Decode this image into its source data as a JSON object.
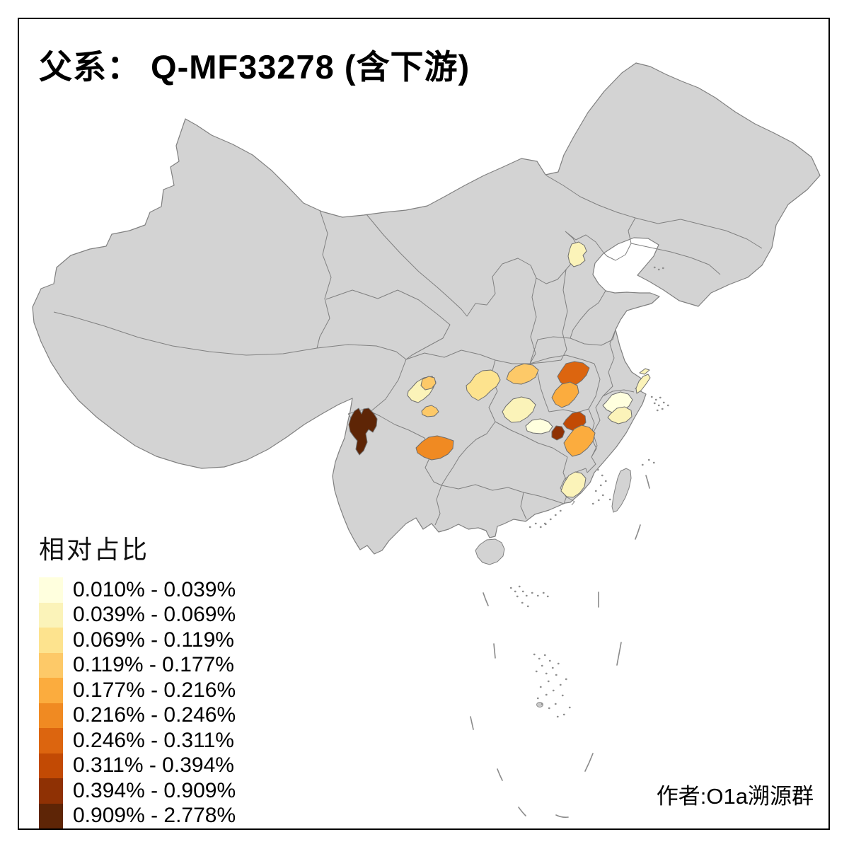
{
  "title": "父系： Q-MF33278 (含下游)",
  "author_credit": "作者:O1a溯源群",
  "chart_data": {
    "type": "choropleth",
    "map_area": "China (prefecture level)",
    "title": "父系： Q-MF33278 (含下游)",
    "legend_title": "相对占比",
    "legend_position": "bottom-left",
    "base_map": {
      "land_fill": "#D3D3D3",
      "border_stroke": "#808080",
      "sea_fill": "#FFFFFF"
    },
    "classes": [
      {
        "label": "0.010% - 0.039%",
        "color": "#FFFFDE"
      },
      {
        "label": "0.039% - 0.069%",
        "color": "#FBF3B9"
      },
      {
        "label": "0.069% - 0.119%",
        "color": "#FDE38E"
      },
      {
        "label": "0.119% - 0.177%",
        "color": "#FDC968"
      },
      {
        "label": "0.177% - 0.216%",
        "color": "#FBAC3E"
      },
      {
        "label": "0.216% - 0.246%",
        "color": "#F08A22"
      },
      {
        "label": "0.246% - 0.311%",
        "color": "#DC650F"
      },
      {
        "label": "0.311% - 0.394%",
        "color": "#C24A04"
      },
      {
        "label": "0.394% - 0.909%",
        "color": "#8F3104"
      },
      {
        "label": "0.909% - 2.778%",
        "color": "#5E2506"
      }
    ],
    "regions": [
      {
        "id": "beijing",
        "class_index": 1
      },
      {
        "id": "chengdu-plain",
        "class_index": 1
      },
      {
        "id": "chengdu-northeast",
        "class_index": 3
      },
      {
        "id": "south-of-chengdu",
        "class_index": 3
      },
      {
        "id": "north-guizhou",
        "class_index": 5
      },
      {
        "id": "northwest-yunnan",
        "class_index": 9
      },
      {
        "id": "chongqing",
        "class_index": 2
      },
      {
        "id": "northwest-hubei",
        "class_index": 3
      },
      {
        "id": "central-hubei",
        "class_index": 1
      },
      {
        "id": "south-central-hubei",
        "class_index": 0
      },
      {
        "id": "north-henan",
        "class_index": 6
      },
      {
        "id": "west-henan",
        "class_index": 4
      },
      {
        "id": "henan-hubei-border-west",
        "class_index": 8
      },
      {
        "id": "henan-hubei-border-east",
        "class_index": 7
      },
      {
        "id": "east-hubei",
        "class_index": 4
      },
      {
        "id": "north-zhejiang",
        "class_index": 0
      },
      {
        "id": "central-zhejiang",
        "class_index": 1
      },
      {
        "id": "shanghai",
        "class_index": 1
      },
      {
        "id": "fujian-guangdong-border",
        "class_index": 1
      }
    ]
  }
}
